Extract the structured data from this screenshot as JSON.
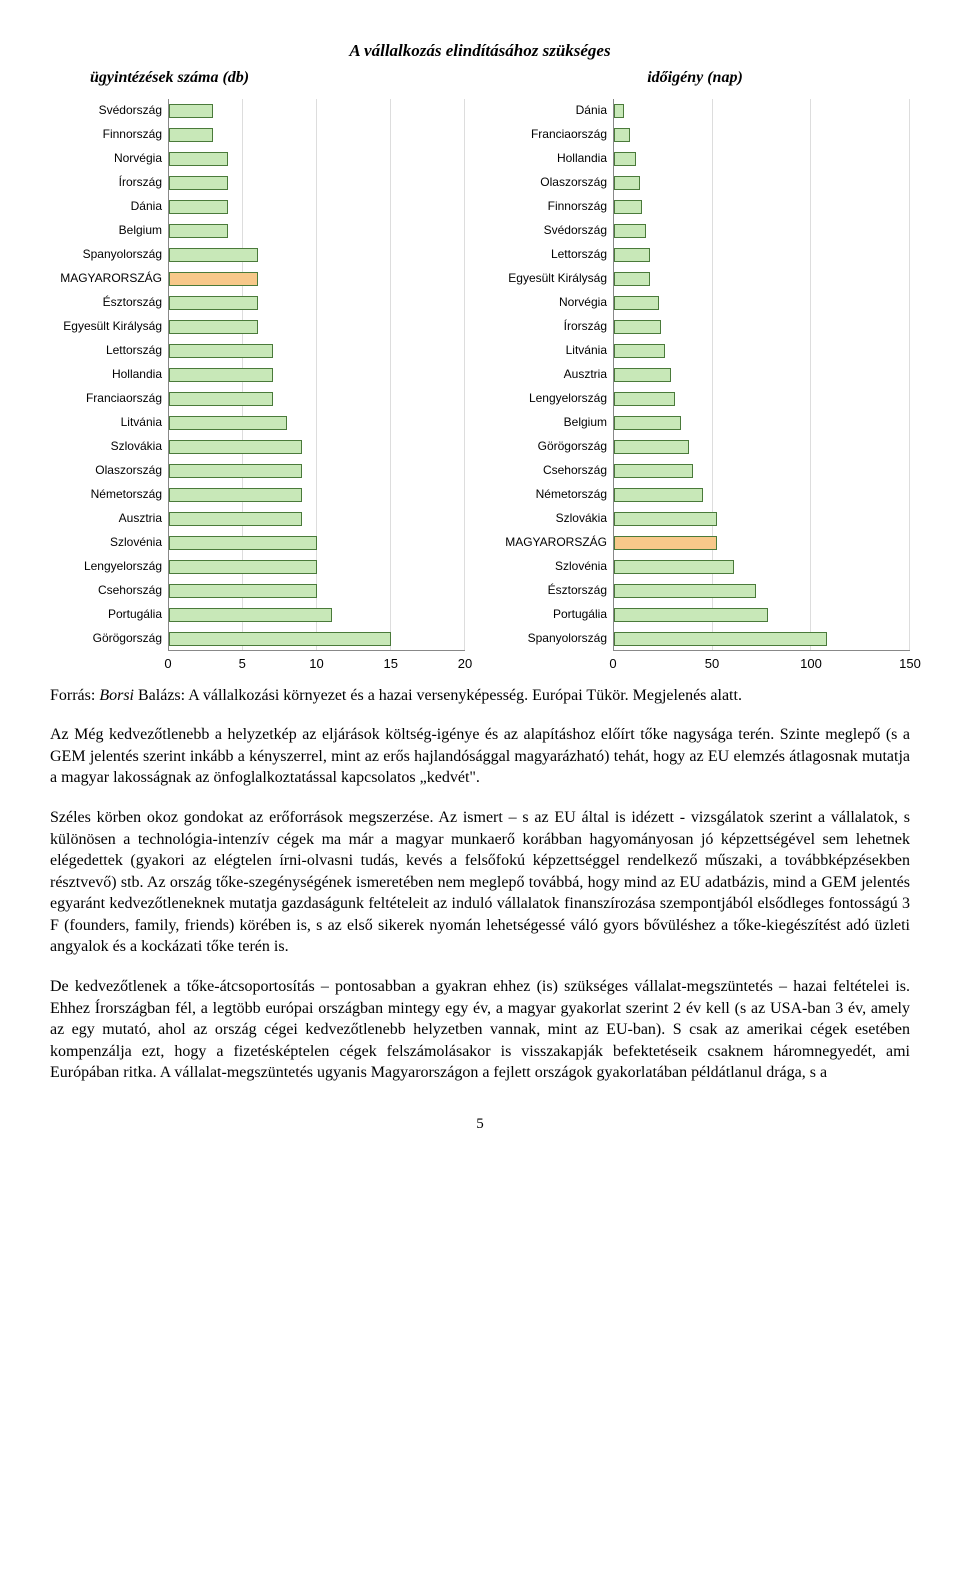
{
  "chart_title": "A vállalkozás elindításához szükséges",
  "subtitle_left": "ügyintézések száma (db)",
  "subtitle_right": "időigény (nap)",
  "left_chart": {
    "type": "bar-horizontal",
    "xlim": [
      0,
      20
    ],
    "xticks": [
      0,
      5,
      10,
      15,
      20
    ],
    "bar_color": "#c8e8b8",
    "highlight_color": "#f7c88a",
    "border_color": "#4a7a3a",
    "grid_color": "#dddddd",
    "background_color": "#ffffff",
    "label_fontsize": 12,
    "tick_fontsize": 13,
    "rows": [
      {
        "label": "Svédország",
        "value": 3,
        "highlight": false
      },
      {
        "label": "Finnország",
        "value": 3,
        "highlight": false
      },
      {
        "label": "Norvégia",
        "value": 4,
        "highlight": false
      },
      {
        "label": "Írország",
        "value": 4,
        "highlight": false
      },
      {
        "label": "Dánia",
        "value": 4,
        "highlight": false
      },
      {
        "label": "Belgium",
        "value": 4,
        "highlight": false
      },
      {
        "label": "Spanyolország",
        "value": 6,
        "highlight": false
      },
      {
        "label": "MAGYARORSZÁG",
        "value": 6,
        "highlight": true
      },
      {
        "label": "Észtország",
        "value": 6,
        "highlight": false
      },
      {
        "label": "Egyesült Királyság",
        "value": 6,
        "highlight": false
      },
      {
        "label": "Lettország",
        "value": 7,
        "highlight": false
      },
      {
        "label": "Hollandia",
        "value": 7,
        "highlight": false
      },
      {
        "label": "Franciaország",
        "value": 7,
        "highlight": false
      },
      {
        "label": "Litvánia",
        "value": 8,
        "highlight": false
      },
      {
        "label": "Szlovákia",
        "value": 9,
        "highlight": false
      },
      {
        "label": "Olaszország",
        "value": 9,
        "highlight": false
      },
      {
        "label": "Németország",
        "value": 9,
        "highlight": false
      },
      {
        "label": "Ausztria",
        "value": 9,
        "highlight": false
      },
      {
        "label": "Szlovénia",
        "value": 10,
        "highlight": false
      },
      {
        "label": "Lengyelország",
        "value": 10,
        "highlight": false
      },
      {
        "label": "Csehország",
        "value": 10,
        "highlight": false
      },
      {
        "label": "Portugália",
        "value": 11,
        "highlight": false
      },
      {
        "label": "Görögország",
        "value": 15,
        "highlight": false
      }
    ]
  },
  "right_chart": {
    "type": "bar-horizontal",
    "xlim": [
      0,
      150
    ],
    "xticks": [
      0,
      50,
      100,
      150
    ],
    "bar_color": "#c8e8b8",
    "highlight_color": "#f7c88a",
    "border_color": "#4a7a3a",
    "grid_color": "#dddddd",
    "background_color": "#ffffff",
    "label_fontsize": 12,
    "tick_fontsize": 13,
    "rows": [
      {
        "label": "Dánia",
        "value": 5,
        "highlight": false
      },
      {
        "label": "Franciaország",
        "value": 8,
        "highlight": false
      },
      {
        "label": "Hollandia",
        "value": 11,
        "highlight": false
      },
      {
        "label": "Olaszország",
        "value": 13,
        "highlight": false
      },
      {
        "label": "Finnország",
        "value": 14,
        "highlight": false
      },
      {
        "label": "Svédország",
        "value": 16,
        "highlight": false
      },
      {
        "label": "Lettország",
        "value": 18,
        "highlight": false
      },
      {
        "label": "Egyesült Királyság",
        "value": 18,
        "highlight": false
      },
      {
        "label": "Norvégia",
        "value": 23,
        "highlight": false
      },
      {
        "label": "Írország",
        "value": 24,
        "highlight": false
      },
      {
        "label": "Litvánia",
        "value": 26,
        "highlight": false
      },
      {
        "label": "Ausztria",
        "value": 29,
        "highlight": false
      },
      {
        "label": "Lengyelország",
        "value": 31,
        "highlight": false
      },
      {
        "label": "Belgium",
        "value": 34,
        "highlight": false
      },
      {
        "label": "Görögország",
        "value": 38,
        "highlight": false
      },
      {
        "label": "Csehország",
        "value": 40,
        "highlight": false
      },
      {
        "label": "Németország",
        "value": 45,
        "highlight": false
      },
      {
        "label": "Szlovákia",
        "value": 52,
        "highlight": false
      },
      {
        "label": "MAGYARORSZÁG",
        "value": 52,
        "highlight": true
      },
      {
        "label": "Szlovénia",
        "value": 61,
        "highlight": false
      },
      {
        "label": "Észtország",
        "value": 72,
        "highlight": false
      },
      {
        "label": "Portugália",
        "value": 78,
        "highlight": false
      },
      {
        "label": "Spanyolország",
        "value": 108,
        "highlight": false
      }
    ]
  },
  "source_prefix": "Forrás: ",
  "source_author": "Borsi",
  "source_rest": " Balázs: A vállalkozási környezet és a hazai versenyképesség. Európai Tükör. Megjelenés alatt.",
  "para1": "Az Még kedvezőtlenebb a helyzetkép az eljárások költség-igénye és az alapításhoz előírt tőke nagysága terén. Szinte meglepő (s a GEM jelentés szerint inkább a kényszerrel, mint az erős hajlandósággal magyarázható) tehát, hogy az EU elemzés átlagosnak mutatja a magyar lakosságnak az önfoglalkoztatással kapcsolatos „kedvét\".",
  "para2": "Széles körben okoz gondokat az erőforrások megszerzése. Az ismert – s az EU által is idézett - vizsgálatok szerint a vállalatok, s különösen a technológia-intenzív cégek ma már a magyar munkaerő korábban hagyományosan jó képzettségével sem lehetnek elégedettek (gyakori az elégtelen írni-olvasni tudás, kevés a felsőfokú képzettséggel rendelkező műszaki, a továbbképzésekben résztvevő) stb. Az ország tőke-szegénységének ismeretében nem meglepő továbbá, hogy mind az EU adatbázis, mind a GEM jelentés egyaránt kedvezőtleneknek mutatja gazdaságunk feltételeit az induló vállalatok finanszírozása szempontjából elsődleges fontosságú 3 F (founders, family, friends) körében is, s az első sikerek nyomán lehetségessé váló gyors bővüléshez a tőke-kiegészítést adó üzleti angyalok és a kockázati tőke terén is.",
  "para3": "De kedvezőtlenek a tőke-átcsoportosítás – pontosabban a gyakran ehhez (is) szükséges vállalat-megszüntetés – hazai feltételei is. Ehhez Írországban fél, a legtöbb európai országban mintegy egy év, a magyar gyakorlat szerint 2 év kell (s az USA-ban 3 év, amely az egy mutató, ahol az ország cégei kedvezőtlenebb helyzetben vannak, mint az EU-ban). S csak az amerikai cégek esetében kompenzálja ezt, hogy a fizetésképtelen cégek felszámolásakor is visszakapják befektetéseik csaknem háromnegyedét, ami Európában ritka. A vállalat-megszüntetés ugyanis Magyarországon a fejlett országok gyakorlatában példátlanul drága, s a",
  "page_number": "5"
}
